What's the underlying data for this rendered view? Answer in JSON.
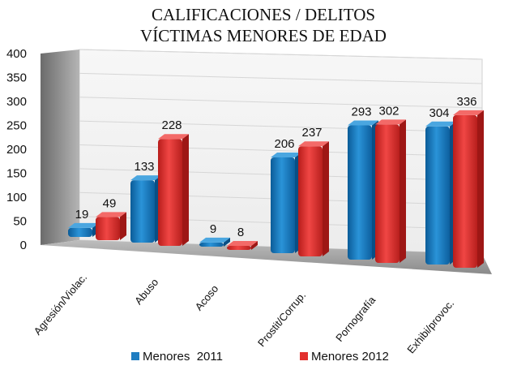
{
  "chart_data": {
    "type": "bar",
    "title": [
      "CALIFICACIONES / DELITOS",
      "VÍCTIMAS MENORES DE EDAD"
    ],
    "categories": [
      "Agresión/Violac.",
      "Abuso",
      "Acoso",
      "Prostit/Corrup.",
      "Pornografía",
      "Exhibi/provoc."
    ],
    "series": [
      {
        "name": "Menores  2011",
        "color": "#1f7dc1",
        "values": [
          19,
          133,
          9,
          206,
          293,
          304
        ]
      },
      {
        "name": "Menores 2012",
        "color": "#e2302e",
        "values": [
          49,
          228,
          8,
          237,
          302,
          336
        ]
      }
    ],
    "ylim": [
      0,
      400
    ],
    "yticks": [
      0,
      50,
      100,
      150,
      200,
      250,
      300,
      350,
      400
    ],
    "xlabel": "",
    "ylabel": "",
    "legend": "bottom",
    "grid": true
  }
}
